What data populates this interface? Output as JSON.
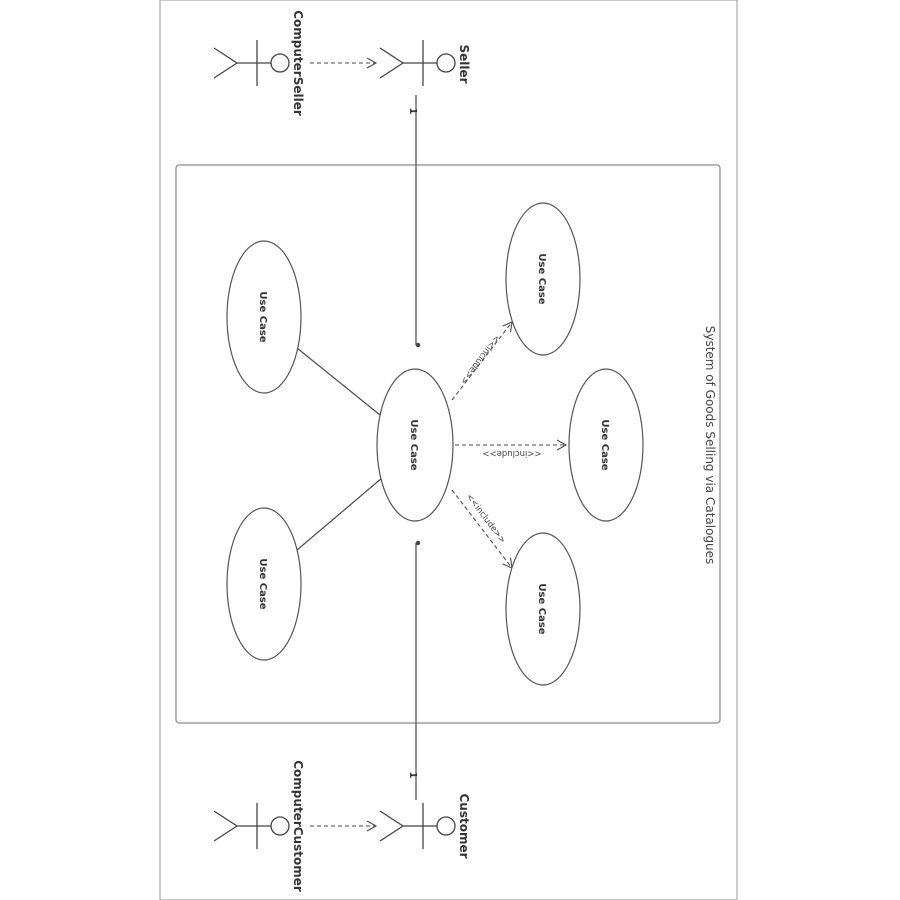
{
  "diagram": {
    "system_label": "System of Goods Selling via Catalogues",
    "actors": {
      "seller": "Seller",
      "computer_seller": "ComputerSeller",
      "customer": "Customer",
      "computer_customer": "ComputerCustomer"
    },
    "use_cases": {
      "central": "Use Case",
      "top_left": "Use Case",
      "bottom_left": "Use Case",
      "top_right": "Use Case",
      "middle_right": "Use Case",
      "bottom_right": "Use Case"
    },
    "relations": {
      "include_top": "<<include>>",
      "include_middle": "<<include>>",
      "include_bottom": "<<include>>"
    },
    "multiplicity": {
      "seller": "1",
      "customer": "1"
    }
  }
}
